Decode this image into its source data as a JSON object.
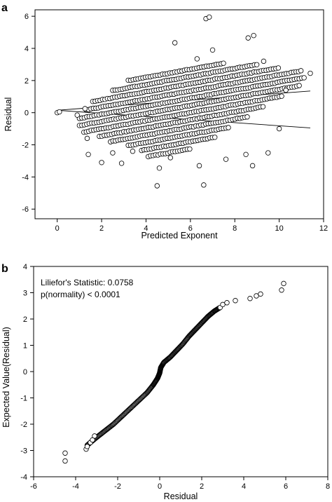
{
  "chart_data": [
    {
      "panel": "a",
      "type": "scatter",
      "title": "",
      "xlabel": "Predicted Exponent",
      "ylabel": "Residual",
      "xlim": [
        -1,
        12
      ],
      "ylim": [
        -6.6,
        6.4
      ],
      "xticks": [
        "0",
        "2",
        "4",
        "6",
        "8",
        "10",
        "12"
      ],
      "yticks": [
        "-6",
        "-4",
        "-2",
        "0",
        "2",
        "4",
        "6"
      ],
      "grid": false,
      "marker": "open-circle",
      "band_step": 0.45,
      "bands": [
        {
          "k": -5,
          "x0": 4.1,
          "x1": 6.0
        },
        {
          "k": -4,
          "x0": 3.8,
          "x1": 7.2
        },
        {
          "k": -3,
          "x0": 3.2,
          "x1": 7.8
        },
        {
          "k": -2,
          "x0": 2.4,
          "x1": 8.6
        },
        {
          "k": -1,
          "x0": 1.9,
          "x1": 9.3
        },
        {
          "k": 0,
          "x0": 1.2,
          "x1": 10.2
        },
        {
          "k": 1,
          "x0": 1.0,
          "x1": 10.9
        },
        {
          "k": 2,
          "x0": 1.0,
          "x1": 11.2
        },
        {
          "k": 3,
          "x0": 1.3,
          "x1": 11.0
        },
        {
          "k": 4,
          "x0": 1.6,
          "x1": 10.0
        },
        {
          "k": 5,
          "x0": 2.5,
          "x1": 9.0
        },
        {
          "k": 6,
          "x0": 3.2,
          "x1": 7.5
        }
      ],
      "extra_points": [
        {
          "x": 0.0,
          "y": 0.0
        },
        {
          "x": 0.1,
          "y": 0.05
        },
        {
          "x": 6.7,
          "y": 5.85
        },
        {
          "x": 6.85,
          "y": 5.95
        },
        {
          "x": 8.6,
          "y": 4.65
        },
        {
          "x": 8.85,
          "y": 4.8
        },
        {
          "x": 5.3,
          "y": 4.35
        },
        {
          "x": 6.3,
          "y": 3.35
        },
        {
          "x": 7.0,
          "y": 3.9
        },
        {
          "x": 11.4,
          "y": 2.45
        },
        {
          "x": 9.3,
          "y": 3.2
        },
        {
          "x": 10.3,
          "y": 1.4
        },
        {
          "x": 4.5,
          "y": -4.55
        },
        {
          "x": 6.6,
          "y": -4.5
        },
        {
          "x": 4.6,
          "y": -3.45
        },
        {
          "x": 6.4,
          "y": -3.3
        },
        {
          "x": 8.8,
          "y": -3.3
        },
        {
          "x": 9.5,
          "y": -2.5
        },
        {
          "x": 2.0,
          "y": -3.1
        },
        {
          "x": 2.9,
          "y": -3.15
        },
        {
          "x": 1.4,
          "y": -2.6
        },
        {
          "x": 2.5,
          "y": -2.5
        },
        {
          "x": 1.35,
          "y": -1.6
        },
        {
          "x": 10.0,
          "y": -1.0
        },
        {
          "x": 0.9,
          "y": -0.15
        },
        {
          "x": 1.25,
          "y": 0.25
        },
        {
          "x": 3.4,
          "y": -2.4
        },
        {
          "x": 5.1,
          "y": -2.8
        },
        {
          "x": 7.6,
          "y": -2.9
        },
        {
          "x": 8.5,
          "y": -2.6
        }
      ],
      "lines": [
        {
          "x": [
            0,
            11.4
          ],
          "y": [
            0.15,
            1.35
          ]
        },
        {
          "x": [
            0,
            11.4
          ],
          "y": [
            0.15,
            -0.95
          ]
        }
      ]
    },
    {
      "panel": "b",
      "type": "scatter",
      "title": "",
      "xlabel": "Residual",
      "ylabel": "Expected Value(Residual)",
      "xlim": [
        -6,
        8
      ],
      "ylim": [
        -4,
        4
      ],
      "xticks": [
        "-6",
        "-4",
        "-2",
        "0",
        "2",
        "4",
        "6",
        "8"
      ],
      "yticks": [
        "-4",
        "-3",
        "-2",
        "-1",
        "0",
        "1",
        "2",
        "3",
        "4"
      ],
      "grid": false,
      "marker": "open-circle",
      "annotations": [
        "Liliefor's Statistic: 0.0758",
        "p(normality)  < 0.0001"
      ],
      "curve": {
        "x": [
          -3.45,
          -3.0,
          -2.6,
          -2.2,
          -1.8,
          -1.4,
          -1.0,
          -0.6,
          -0.3,
          -0.1,
          0.0,
          0.05,
          0.2,
          0.5,
          0.8,
          1.1,
          1.4,
          1.7,
          2.0,
          2.3,
          2.6,
          2.9
        ],
        "y": [
          -2.8,
          -2.5,
          -2.25,
          -2.0,
          -1.7,
          -1.4,
          -1.1,
          -0.8,
          -0.5,
          -0.25,
          -0.05,
          0.15,
          0.35,
          0.55,
          0.8,
          1.05,
          1.35,
          1.6,
          1.85,
          2.1,
          2.3,
          2.45
        ]
      },
      "extra_points": [
        {
          "x": -4.5,
          "y": -3.4
        },
        {
          "x": -4.5,
          "y": -3.1
        },
        {
          "x": -3.5,
          "y": -2.95
        },
        {
          "x": -3.45,
          "y": -2.85
        },
        {
          "x": -3.3,
          "y": -2.7
        },
        {
          "x": -3.2,
          "y": -2.6
        },
        {
          "x": -3.1,
          "y": -2.45
        },
        {
          "x": 3.0,
          "y": 2.55
        },
        {
          "x": 3.2,
          "y": 2.62
        },
        {
          "x": 3.6,
          "y": 2.7
        },
        {
          "x": 4.3,
          "y": 2.78
        },
        {
          "x": 4.6,
          "y": 2.88
        },
        {
          "x": 4.8,
          "y": 2.95
        },
        {
          "x": 5.8,
          "y": 3.1
        },
        {
          "x": 5.9,
          "y": 3.35
        }
      ]
    }
  ]
}
